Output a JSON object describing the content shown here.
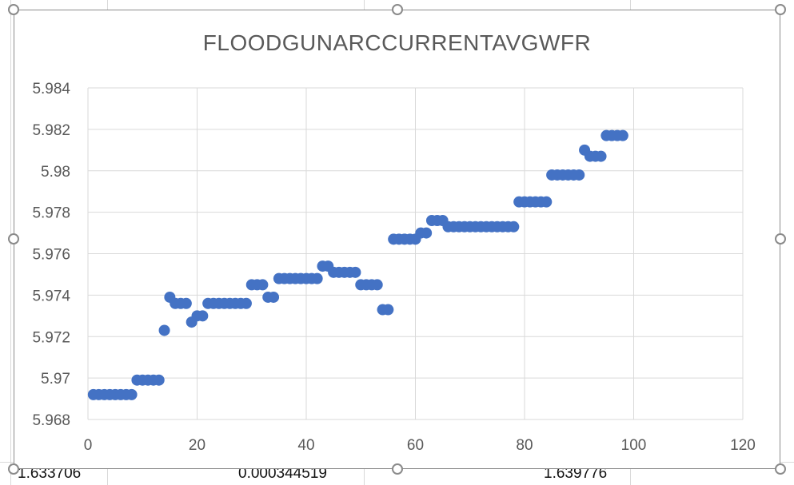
{
  "sheet": {
    "cells": [
      "1.633706",
      "0.000344519",
      "1.639776"
    ]
  },
  "chart_data": {
    "type": "scatter",
    "title": "FLOODGUNARCCURRENTAVGWFR",
    "xlabel": "",
    "ylabel": "",
    "xlim": [
      0,
      120
    ],
    "ylim": [
      5.968,
      5.984
    ],
    "x_ticks": [
      "0",
      "20",
      "40",
      "60",
      "80",
      "100",
      "120"
    ],
    "y_ticks": [
      "5.968",
      "5.97",
      "5.972",
      "5.974",
      "5.976",
      "5.978",
      "5.98",
      "5.982",
      "5.984"
    ],
    "grid": true,
    "legend": "none",
    "marker_color": "#4472c4",
    "x": [
      1,
      2,
      3,
      4,
      5,
      6,
      7,
      8,
      9,
      10,
      11,
      12,
      13,
      14,
      15,
      16,
      17,
      18,
      19,
      20,
      21,
      22,
      23,
      24,
      25,
      26,
      27,
      28,
      29,
      30,
      31,
      32,
      33,
      34,
      35,
      36,
      37,
      38,
      39,
      40,
      41,
      42,
      43,
      44,
      45,
      46,
      47,
      48,
      49,
      50,
      51,
      52,
      53,
      54,
      55,
      56,
      57,
      58,
      59,
      60,
      61,
      62,
      63,
      64,
      65,
      66,
      67,
      68,
      69,
      70,
      71,
      72,
      73,
      74,
      75,
      76,
      77,
      78,
      79,
      80,
      81,
      82,
      83,
      84,
      85,
      86,
      87,
      88,
      89,
      90,
      91,
      92,
      93,
      94,
      95,
      96,
      97,
      98
    ],
    "y": [
      5.9692,
      5.9692,
      5.9692,
      5.9692,
      5.9692,
      5.9692,
      5.9692,
      5.9692,
      5.9699,
      5.9699,
      5.9699,
      5.9699,
      5.9699,
      5.9723,
      5.9739,
      5.9736,
      5.9736,
      5.9736,
      5.9727,
      5.973,
      5.973,
      5.9736,
      5.9736,
      5.9736,
      5.9736,
      5.9736,
      5.9736,
      5.9736,
      5.9736,
      5.9745,
      5.9745,
      5.9745,
      5.9739,
      5.9739,
      5.9748,
      5.9748,
      5.9748,
      5.9748,
      5.9748,
      5.9748,
      5.9748,
      5.9748,
      5.9754,
      5.9754,
      5.9751,
      5.9751,
      5.9751,
      5.9751,
      5.9751,
      5.9745,
      5.9745,
      5.9745,
      5.9745,
      5.9733,
      5.9733,
      5.9767,
      5.9767,
      5.9767,
      5.9767,
      5.9767,
      5.977,
      5.977,
      5.9776,
      5.9776,
      5.9776,
      5.9773,
      5.9773,
      5.9773,
      5.9773,
      5.9773,
      5.9773,
      5.9773,
      5.9773,
      5.9773,
      5.9773,
      5.9773,
      5.9773,
      5.9773,
      5.9785,
      5.9785,
      5.9785,
      5.9785,
      5.9785,
      5.9785,
      5.9798,
      5.9798,
      5.9798,
      5.9798,
      5.9798,
      5.9798,
      5.981,
      5.9807,
      5.9807,
      5.9807,
      5.9817,
      5.9817,
      5.9817,
      5.9817
    ]
  }
}
